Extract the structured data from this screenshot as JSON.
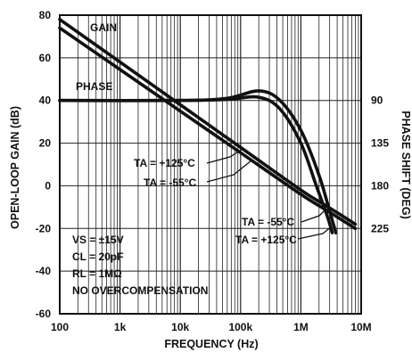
{
  "chart_data": {
    "type": "line",
    "xlabel": "FREQUENCY (Hz)",
    "ylabel": "OPEN-LOOP GAIN (dB)",
    "y2label": "PHASE SHIFT (DEG)",
    "x_scale": "log",
    "xlim": [
      100,
      10000000
    ],
    "ylim": [
      -60,
      80
    ],
    "x_ticks": [
      {
        "v": 100,
        "label": "100"
      },
      {
        "v": 1000,
        "label": "1k"
      },
      {
        "v": 10000,
        "label": "10k"
      },
      {
        "v": 100000,
        "label": "100k"
      },
      {
        "v": 1000000,
        "label": "1M"
      },
      {
        "v": 10000000,
        "label": "10M"
      }
    ],
    "y_ticks": [
      80,
      60,
      40,
      20,
      0,
      -20,
      -40,
      -60
    ],
    "phase_ticks": [
      {
        "label": "90",
        "y": 40
      },
      {
        "label": "135",
        "y": 20
      },
      {
        "label": "180",
        "y": 0
      },
      {
        "label": "225",
        "y": -20
      }
    ],
    "grid": true,
    "series": [
      {
        "name": "GAIN",
        "condition": "TA = +125°C",
        "points": [
          [
            100,
            78
          ],
          [
            1000,
            58
          ],
          [
            10000,
            38
          ],
          [
            100000,
            18
          ],
          [
            1000000,
            -2
          ],
          [
            2500000,
            -9
          ],
          [
            8000000,
            -18
          ]
        ]
      },
      {
        "name": "GAIN",
        "condition": "TA = -55°C",
        "points": [
          [
            100,
            74
          ],
          [
            1000,
            54.5
          ],
          [
            10000,
            35
          ],
          [
            100000,
            15.5
          ],
          [
            1000000,
            -4
          ],
          [
            2500000,
            -11
          ],
          [
            8000000,
            -20
          ]
        ]
      },
      {
        "name": "PHASE",
        "condition": "TA = -55°C",
        "points": [
          [
            100,
            40
          ],
          [
            10000,
            40
          ],
          [
            60000,
            41
          ],
          [
            200000,
            44.5
          ],
          [
            450000,
            40
          ],
          [
            1000000,
            26
          ],
          [
            2000000,
            5
          ],
          [
            3000000,
            -12
          ],
          [
            3800000,
            -22
          ]
        ]
      },
      {
        "name": "PHASE",
        "condition": "TA = +125°C",
        "points": [
          [
            100,
            40
          ],
          [
            10000,
            40
          ],
          [
            60000,
            40.5
          ],
          [
            200000,
            41.5
          ],
          [
            450000,
            36
          ],
          [
            1000000,
            20
          ],
          [
            1800000,
            0
          ],
          [
            2800000,
            -15
          ],
          [
            3300000,
            -22
          ]
        ]
      }
    ],
    "labels": {
      "gain": "GAIN",
      "phase": "PHASE",
      "ta_125_a": "TA = +125°C",
      "ta_55_a": "TA = -55°C",
      "ta_55_b": "TA = -55°C",
      "ta_125_b": "TA = +125°C"
    },
    "conditions": [
      "VS = ±15V",
      "CL = 20pF",
      "RL = 1MΩ",
      "NO OVERCOMPENSATION"
    ]
  }
}
